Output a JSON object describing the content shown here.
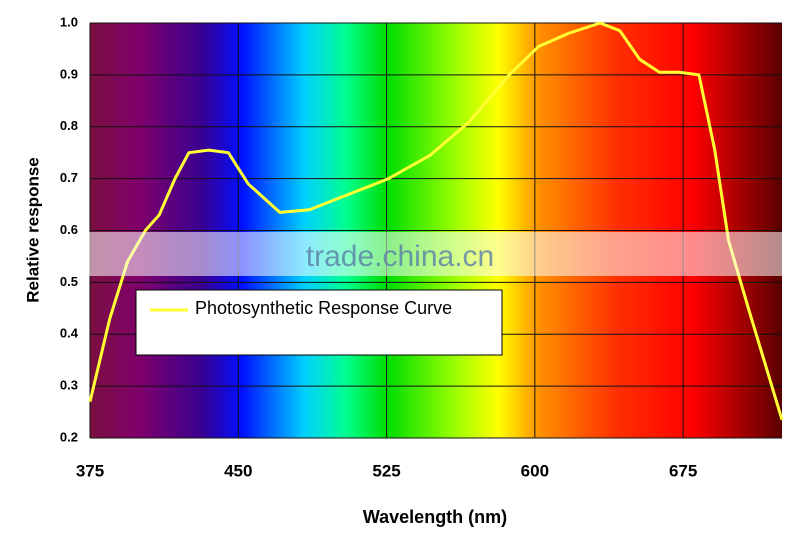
{
  "chart_data": {
    "type": "line",
    "xlabel": "Wavelength (nm)",
    "ylabel": "Relative response",
    "watermark": "trade.china.cn",
    "xlim": [
      375,
      725
    ],
    "xticks": [
      375,
      450,
      525,
      600,
      675
    ],
    "ylim": [
      0.2,
      1.0
    ],
    "yticks": [
      0.2,
      0.3,
      0.4,
      0.5,
      0.6,
      0.7,
      0.8,
      0.9,
      {
        "value": 1,
        "label": "1.0"
      }
    ],
    "grid": true,
    "legend": "upper left",
    "series": [
      {
        "name": "Photosynthetic Response Curve",
        "color": "#ffff33",
        "x": [
          375,
          385,
          394,
          403,
          410,
          418,
          425,
          435,
          445,
          455,
          471,
          486,
          506,
          526,
          547,
          567,
          587,
          602,
          617,
          633,
          643,
          653,
          663,
          673,
          683,
          691,
          698,
          708,
          725
        ],
        "values": [
          0.27,
          0.43,
          0.54,
          0.6,
          0.63,
          0.7,
          0.75,
          0.755,
          0.75,
          0.69,
          0.635,
          0.64,
          0.67,
          0.7,
          0.745,
          0.81,
          0.9,
          0.955,
          0.98,
          1.0,
          0.985,
          0.93,
          0.905,
          0.905,
          0.9,
          0.755,
          0.58,
          0.45,
          0.235
        ]
      }
    ]
  }
}
